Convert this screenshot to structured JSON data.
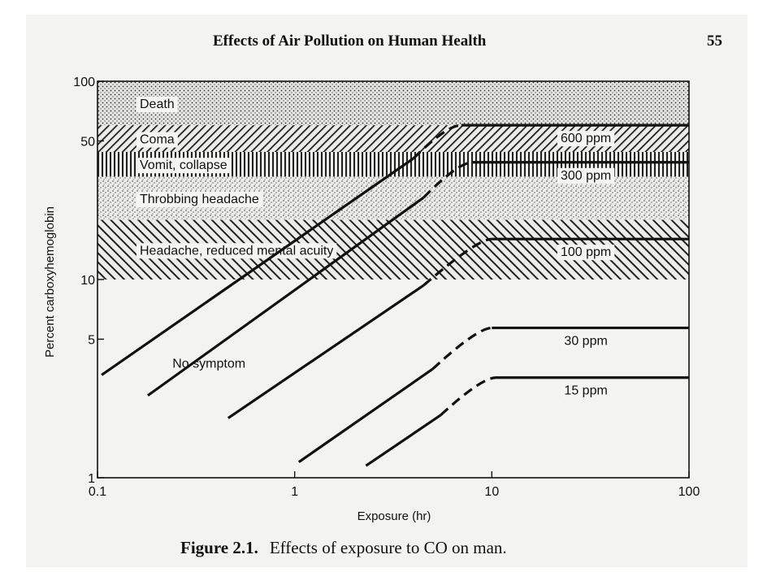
{
  "header": {
    "running_title": "Effects of Air Pollution on Human Health",
    "page_number": "55"
  },
  "caption": {
    "label": "Figure 2.1.",
    "text": "Effects of exposure to CO on man."
  },
  "colors": {
    "ink": "#111111",
    "band_fill": "#d6d6d6",
    "paper": "#f3f3f1"
  },
  "chart_data": {
    "type": "line",
    "x_scale": "log",
    "y_scale": "log",
    "xlabel": "Exposure (hr)",
    "ylabel": "Percent carboxyhemoglobin",
    "xlim": [
      0.1,
      100
    ],
    "ylim": [
      1,
      100
    ],
    "x_ticks": [
      {
        "value": 0.1,
        "label": "0.1"
      },
      {
        "value": 1,
        "label": "1"
      },
      {
        "value": 10,
        "label": "10"
      },
      {
        "value": 100,
        "label": "100"
      }
    ],
    "y_ticks": [
      {
        "value": 1,
        "label": "1"
      },
      {
        "value": 5,
        "label": "5"
      },
      {
        "value": 10,
        "label": "10"
      },
      {
        "value": 50,
        "label": "50"
      },
      {
        "value": 100,
        "label": "100"
      }
    ],
    "bands": [
      {
        "label": "Death",
        "y_range": [
          60,
          100
        ],
        "pattern": "dots-fine"
      },
      {
        "label": "Coma",
        "y_range": [
          44,
          60
        ],
        "pattern": "diag-right"
      },
      {
        "label": "Vomit, collapse",
        "y_range": [
          33,
          44
        ],
        "pattern": "vertical"
      },
      {
        "label": "Throbbing headache",
        "y_range": [
          20,
          33
        ],
        "pattern": "stipple"
      },
      {
        "label": "Headache, reduced mental acuity",
        "y_range": [
          10,
          20
        ],
        "pattern": "diag-left"
      }
    ],
    "no_symptom_label": "No symptom",
    "series": [
      {
        "name": "600 ppm",
        "x_start": 0.105,
        "x_plateau": 7,
        "plateau": 60,
        "x_end": 100,
        "y_start": 3.3,
        "x_dash": 4,
        "label_x": 30
      },
      {
        "name": "300 ppm",
        "x_start": 0.18,
        "x_plateau": 8,
        "plateau": 39,
        "x_end": 100,
        "y_start": 2.6,
        "x_dash": 4.5,
        "label_x": 30
      },
      {
        "name": "100 ppm",
        "x_start": 0.46,
        "x_plateau": 10,
        "plateau": 16,
        "x_end": 100,
        "y_start": 2.0,
        "x_dash": 4.5,
        "label_x": 30
      },
      {
        "name": "30 ppm",
        "x_start": 1.05,
        "x_plateau": 10,
        "plateau": 5.7,
        "x_end": 100,
        "y_start": 1.2,
        "x_dash": 5,
        "label_x": 30
      },
      {
        "name": "15 ppm",
        "x_start": 2.3,
        "x_plateau": 10.5,
        "plateau": 3.2,
        "x_end": 100,
        "y_start": 1.15,
        "x_dash": 5.5,
        "label_x": 30
      }
    ]
  }
}
